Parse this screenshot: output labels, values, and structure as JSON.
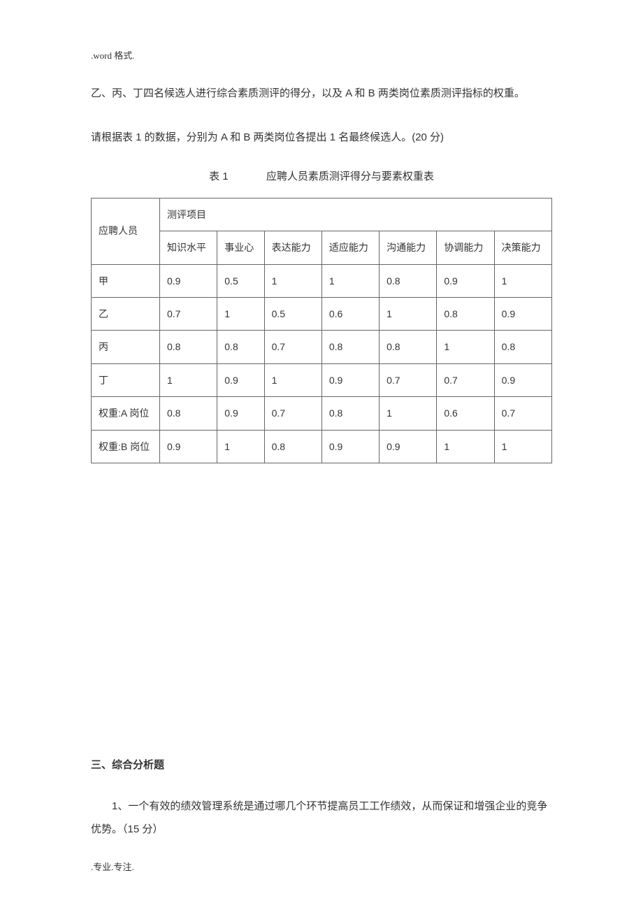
{
  "header": ".word 格式.",
  "para1": "乙、丙、丁四名候选人进行综合素质测评的得分，以及 A 和 B 两类岗位素质测评指标的权重。",
  "para2": "请根据表 1 的数据，分别为 A 和 B 两类岗位各提出 1 名最终候选人。(20 分)",
  "table_caption_num": "表 1",
  "table_caption_text": "应聘人员素质测评得分与要素权重表",
  "table": {
    "type": "table",
    "row_label_header": "应聘人员",
    "group_header": "测评项目",
    "columns": [
      "知识水平",
      "事业心",
      "表达能力",
      "适应能力",
      "沟通能力",
      "协调能力",
      "决策能力"
    ],
    "rows": [
      {
        "label": "甲",
        "values": [
          "0.9",
          "0.5",
          "1",
          "1",
          "0.8",
          "0.9",
          "1"
        ]
      },
      {
        "label": "乙",
        "values": [
          "0.7",
          "1",
          "0.5",
          "0.6",
          "1",
          "0.8",
          "0.9"
        ]
      },
      {
        "label": "丙",
        "values": [
          "0.8",
          "0.8",
          "0.7",
          "0.8",
          "0.8",
          "1",
          "0.8"
        ]
      },
      {
        "label": "丁",
        "values": [
          "1",
          "0.9",
          "1",
          "0.9",
          "0.7",
          "0.7",
          "0.9"
        ]
      },
      {
        "label": "权重:A 岗位",
        "values": [
          "0.8",
          "0.9",
          "0.7",
          "0.8",
          "1",
          "0.6",
          "0.7"
        ]
      },
      {
        "label": "权重:B 岗位",
        "values": [
          "0.9",
          "1",
          "0.8",
          "0.9",
          "0.9",
          "1",
          "1"
        ]
      }
    ],
    "border_color": "#666666",
    "cell_padding": "12px 10px",
    "font_size": 14
  },
  "section_heading": "三、综合分析题",
  "q1": "1、一个有效的绩效管理系统是通过哪几个环节提高员工工作绩效，从而保证和增强企业的竞争优势。（15 分）",
  "footer": ".专业.专注."
}
